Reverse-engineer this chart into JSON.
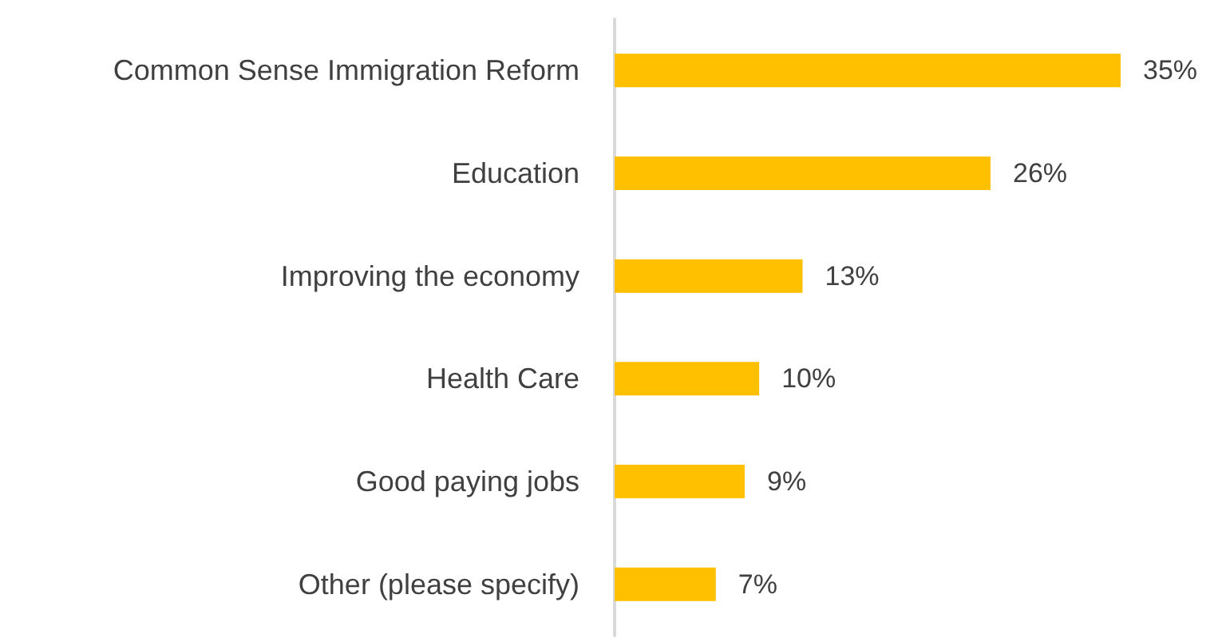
{
  "chart_data": {
    "type": "bar",
    "orientation": "horizontal",
    "categories": [
      "Common Sense Immigration Reform",
      "Education",
      "Improving the economy",
      "Health Care",
      "Good paying jobs",
      "Other (please specify)"
    ],
    "values": [
      35,
      26,
      13,
      10,
      9,
      7
    ],
    "value_labels": [
      "35%",
      "26%",
      "13%",
      "10%",
      "9%",
      "7%"
    ],
    "color": "#ffc000"
  }
}
